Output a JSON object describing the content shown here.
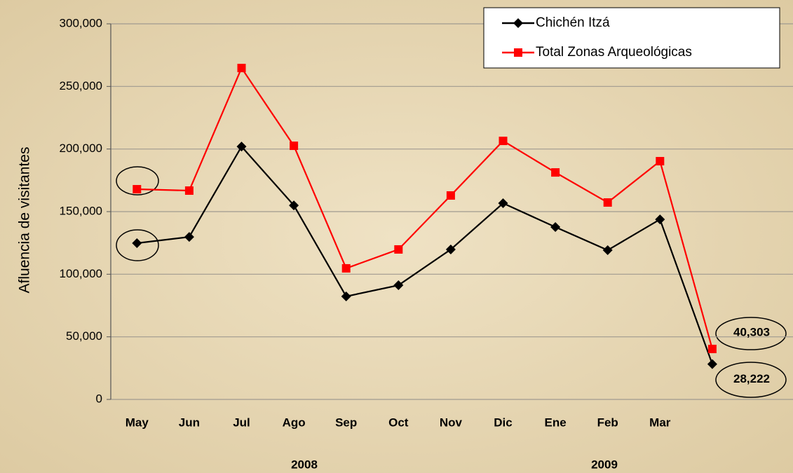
{
  "chart_data": {
    "type": "line",
    "y_label": "Afluencia de visitantes",
    "categories": [
      "May",
      "Jun",
      "Jul",
      "Ago",
      "Sep",
      "Oct",
      "Nov",
      "Dic",
      "Ene",
      "Feb",
      "Mar",
      null
    ],
    "series": [
      {
        "name": "Chichén Itzá",
        "color": "#000000",
        "marker": "diamond",
        "values": [
          124800,
          129800,
          202000,
          155000,
          82300,
          91200,
          119800,
          156700,
          137700,
          119200,
          143800,
          28222
        ],
        "value_labels": [
          null,
          null,
          null,
          null,
          null,
          null,
          null,
          null,
          null,
          null,
          null,
          "28,222"
        ]
      },
      {
        "name": "Total Zonas Arqueológicas",
        "color": "#ff0000",
        "marker": "square",
        "values": [
          167900,
          166800,
          264700,
          202600,
          104700,
          119800,
          162900,
          206500,
          181300,
          157300,
          190300,
          40303
        ],
        "value_labels": [
          null,
          null,
          null,
          null,
          null,
          null,
          null,
          null,
          null,
          null,
          null,
          "40,303"
        ]
      }
    ],
    "annotations": [
      "2008",
      "2009"
    ],
    "ylim": [
      0,
      300000
    ],
    "yticks": [
      0,
      {
        "value": 50000,
        "label": "50,000"
      },
      {
        "value": 100000,
        "label": "100,000"
      },
      {
        "value": 150000,
        "label": "150,000"
      },
      {
        "value": 200000,
        "label": "200,000"
      },
      {
        "value": 250000,
        "label": "250,000"
      },
      {
        "value": 300000,
        "label": "300,000"
      }
    ],
    "grid": true,
    "legend": "top-right"
  }
}
